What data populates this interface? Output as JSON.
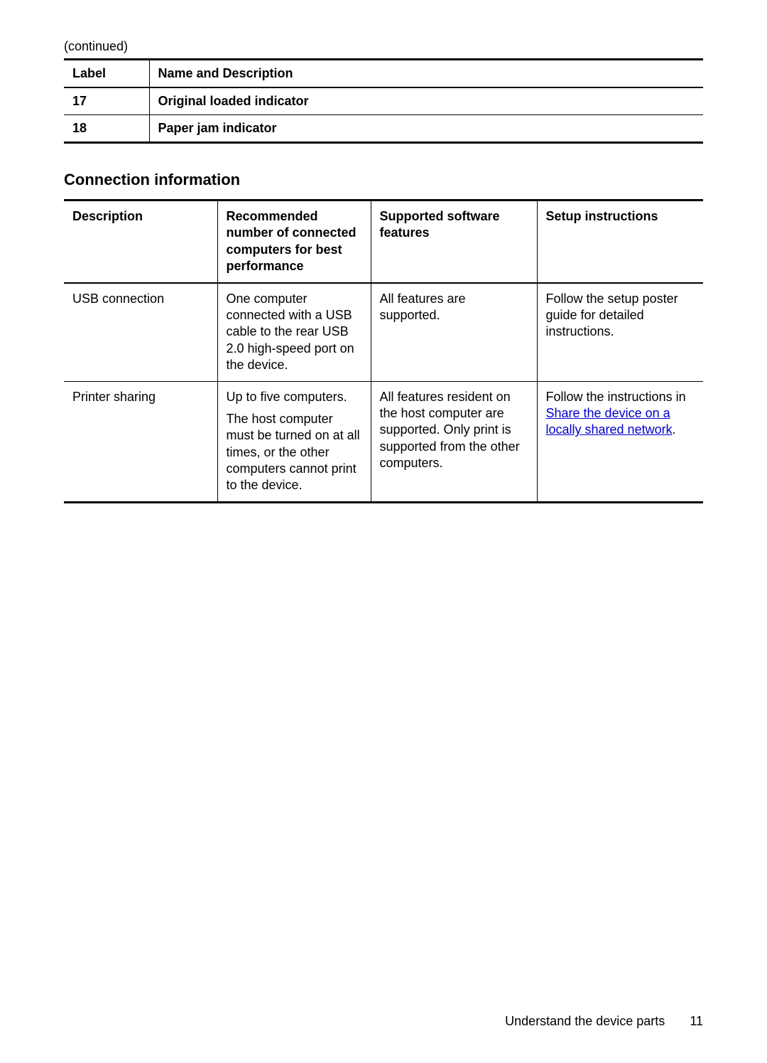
{
  "continued_label": "(continued)",
  "table1": {
    "headers": {
      "label": "Label",
      "desc": "Name and Description"
    },
    "rows": [
      {
        "label": "17",
        "desc": "Original loaded indicator"
      },
      {
        "label": "18",
        "desc": "Paper jam indicator"
      }
    ]
  },
  "section_title": "Connection information",
  "table2": {
    "headers": {
      "c1": "Description",
      "c2": "Recommended number of connected computers for best performance",
      "c3": "Supported software features",
      "c4": "Setup instructions"
    },
    "rows": [
      {
        "c1": "USB connection",
        "c2": "One computer connected with a USB cable to the rear USB 2.0 high-speed port on the device.",
        "c3": "All features are supported.",
        "c4_pre": "Follow the setup poster guide for detailed instructions.",
        "c4_link": "",
        "c4_post": ""
      },
      {
        "c1": "Printer sharing",
        "c2a": "Up to five computers.",
        "c2b": "The host computer must be turned on at all times, or the other computers cannot print to the device.",
        "c3": "All features resident on the host computer are supported. Only print is supported from the other computers.",
        "c4_pre": "Follow the instructions in ",
        "c4_link": "Share the device on a locally shared network",
        "c4_post": "."
      }
    ]
  },
  "footer": {
    "section": "Understand the device parts",
    "page": "11"
  }
}
